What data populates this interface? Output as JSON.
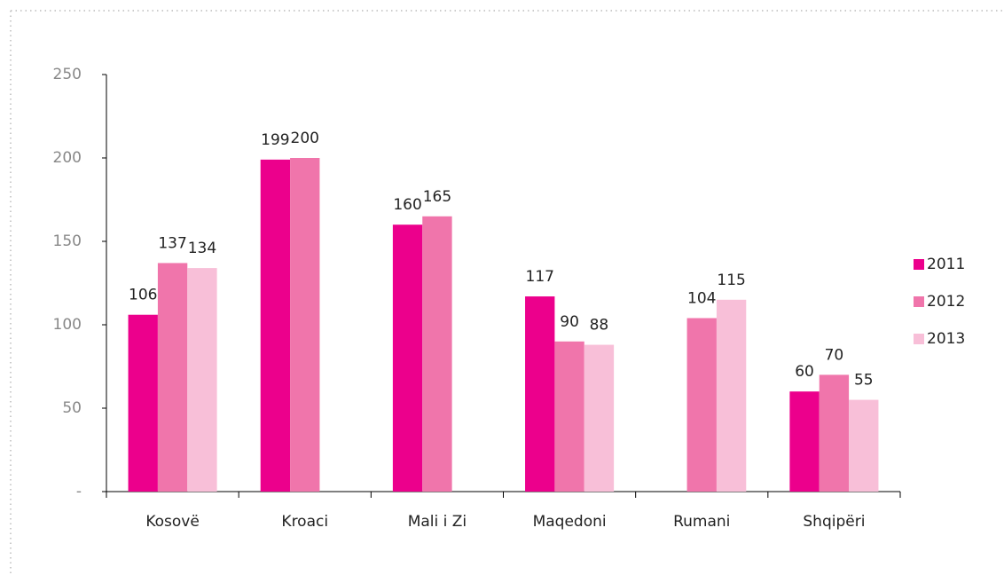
{
  "chart_data": {
    "type": "bar",
    "categories": [
      "Kosovë",
      "Kroaci",
      "Mali i Zi",
      "Maqedoni",
      "Rumani",
      "Shqipëri"
    ],
    "series": [
      {
        "name": "2011",
        "color": "#ec008c",
        "values": [
          106,
          199,
          160,
          117,
          null,
          60
        ]
      },
      {
        "name": "2012",
        "color": "#f075ab",
        "values": [
          137,
          200,
          165,
          90,
          104,
          70
        ]
      },
      {
        "name": "2013",
        "color": "#f8bfd8",
        "values": [
          134,
          null,
          null,
          88,
          115,
          55
        ]
      }
    ],
    "ylim": [
      0,
      250
    ],
    "yticks": [
      {
        "value": 0,
        "label": "-"
      },
      50,
      100,
      150,
      200,
      250
    ],
    "legend": "right",
    "grid": false
  }
}
